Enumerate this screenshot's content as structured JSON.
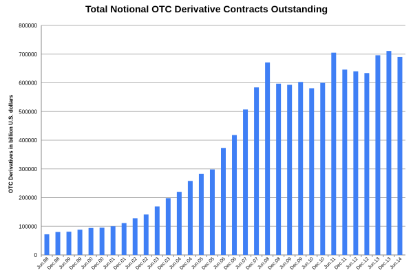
{
  "chart_data": {
    "type": "bar",
    "title": "Total Notional OTC Derivative Contracts Outstanding",
    "xlabel": "",
    "ylabel": "OTC Derivatives in billion U.S. dollars",
    "ylim": [
      0,
      800000
    ],
    "yticks": [
      0,
      100000,
      200000,
      300000,
      400000,
      500000,
      600000,
      700000,
      800000
    ],
    "grid": true,
    "bar_color": "#3F7FF5",
    "categories": [
      "Jun.98",
      "Dec.98",
      "Jun.99",
      "Dec.99",
      "Jun.00",
      "Dec.00",
      "Jun.01",
      "Dec.01",
      "Jun.02",
      "Dec.02",
      "Jun.03",
      "Dec.03",
      "Jun.04",
      "Dec.04",
      "Jun.05",
      "Dec.05",
      "Jun.06",
      "Dec.06",
      "Jun.07",
      "Dec.07",
      "Jun.08",
      "Dec.08",
      "Jun.09",
      "Dec.09",
      "Jun.10",
      "Dec.10",
      "Jun.11",
      "Dec.11",
      "Jun.12",
      "Dec.12",
      "Jun.13",
      "Dec.13",
      "Jun.14"
    ],
    "values": [
      72000,
      80000,
      81000,
      88000,
      94000,
      95000,
      100000,
      111000,
      128000,
      141000,
      169000,
      198000,
      220000,
      258000,
      283000,
      298000,
      373000,
      418000,
      507000,
      584000,
      671000,
      597000,
      593000,
      603000,
      581000,
      600000,
      705000,
      646000,
      640000,
      634000,
      696000,
      711000,
      690000
    ]
  }
}
